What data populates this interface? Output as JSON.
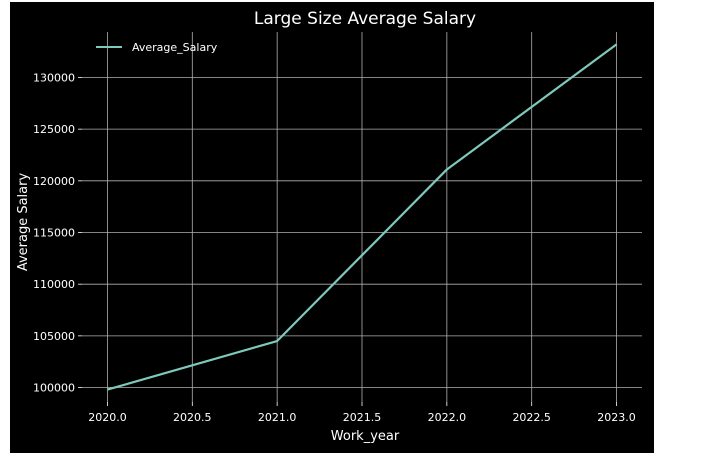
{
  "chart_data": {
    "type": "line",
    "title": "Large Size Average Salary",
    "xlabel": "Work_year",
    "ylabel": "Average Salary",
    "x": [
      2020,
      2021,
      2022,
      2023
    ],
    "series": [
      {
        "name": "Average_Salary",
        "values": [
          99800,
          104500,
          121100,
          133200
        ],
        "color": "#7fc8bc"
      }
    ],
    "xlim": [
      2019.85,
      2023.15
    ],
    "ylim": [
      98600,
      134400
    ],
    "xticks": [
      2020.0,
      2020.5,
      2021.0,
      2021.5,
      2022.0,
      2022.5,
      2023.0
    ],
    "xtick_labels": [
      "2020.0",
      "2020.5",
      "2021.0",
      "2021.5",
      "2022.0",
      "2022.5",
      "2023.0"
    ],
    "yticks": [
      100000,
      105000,
      110000,
      115000,
      120000,
      125000,
      130000
    ],
    "ytick_labels": [
      "100000",
      "105000",
      "110000",
      "115000",
      "120000",
      "125000",
      "130000"
    ],
    "grid": true,
    "legend_position": "upper-left",
    "background_color": "#000000",
    "text_color": "#ffffff",
    "grid_color": "#b0b0b0"
  }
}
